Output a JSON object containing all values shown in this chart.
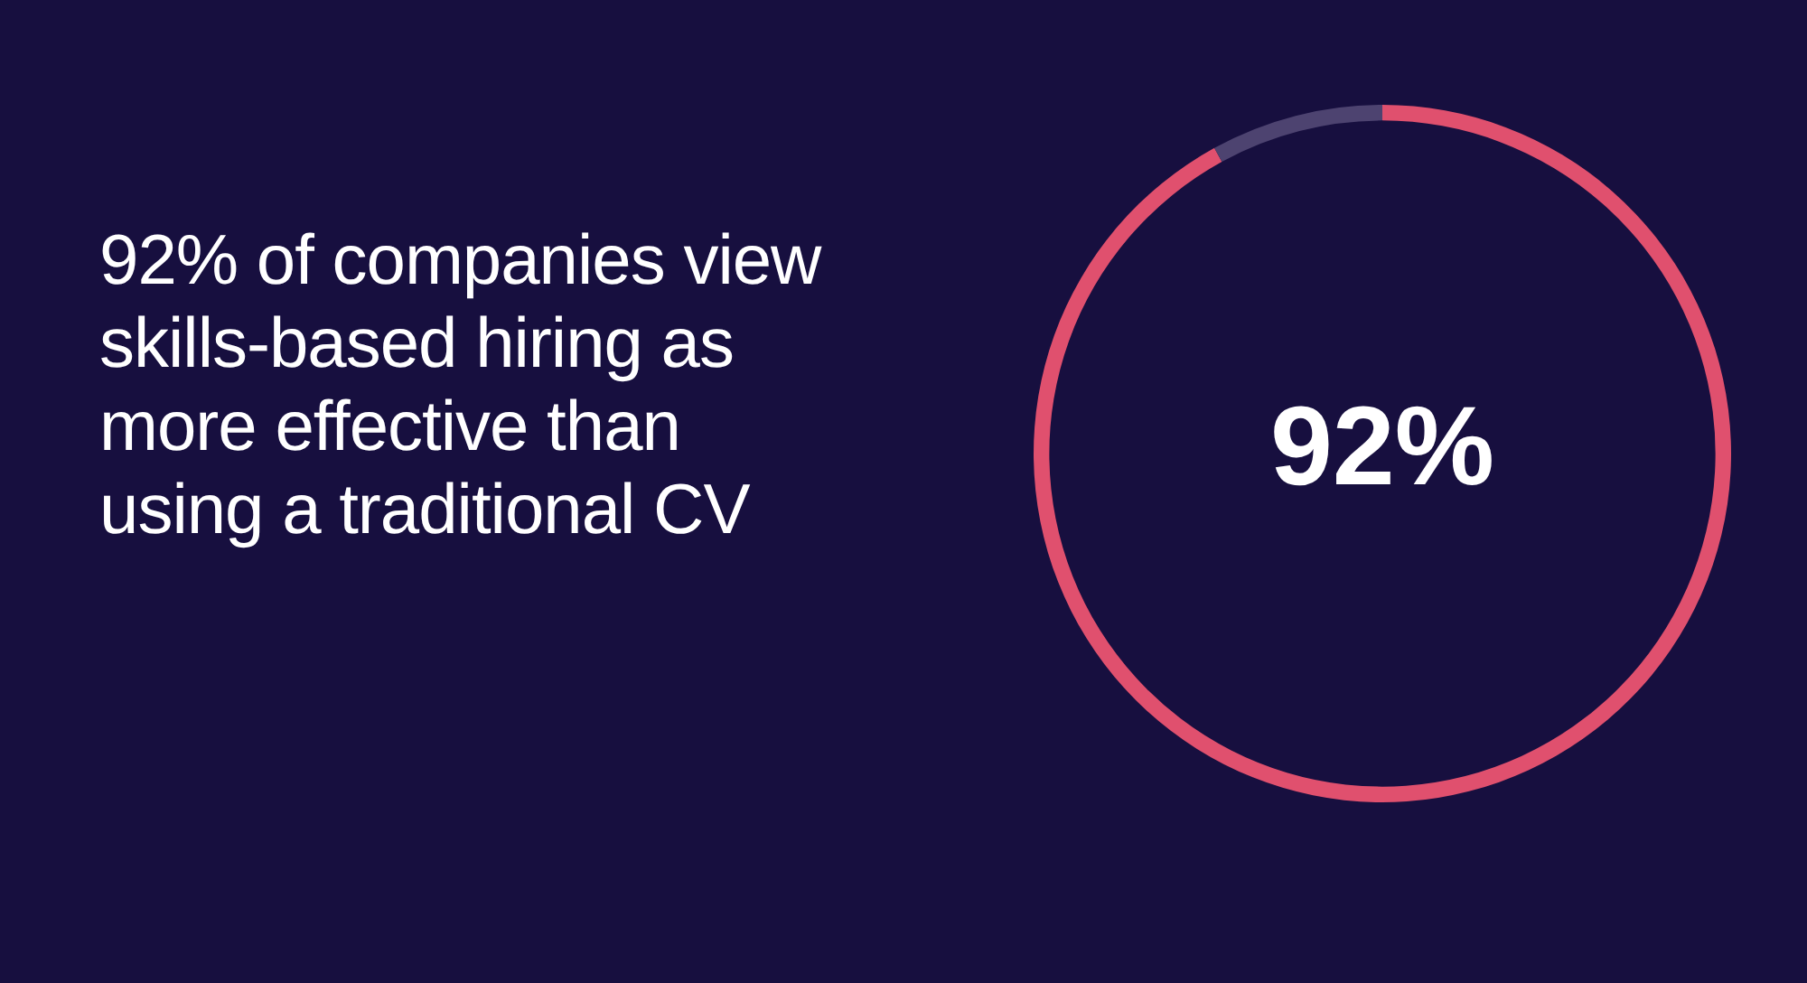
{
  "chart_data": {
    "type": "donut",
    "title": "92% of companies view skills-based hiring as more effective than using a traditional CV",
    "categories": [
      null,
      null
    ],
    "values": [
      92,
      8
    ],
    "colors": [
      "#e0506e",
      "#4d4370"
    ],
    "annotations": [
      "92%"
    ],
    "legend": false
  }
}
